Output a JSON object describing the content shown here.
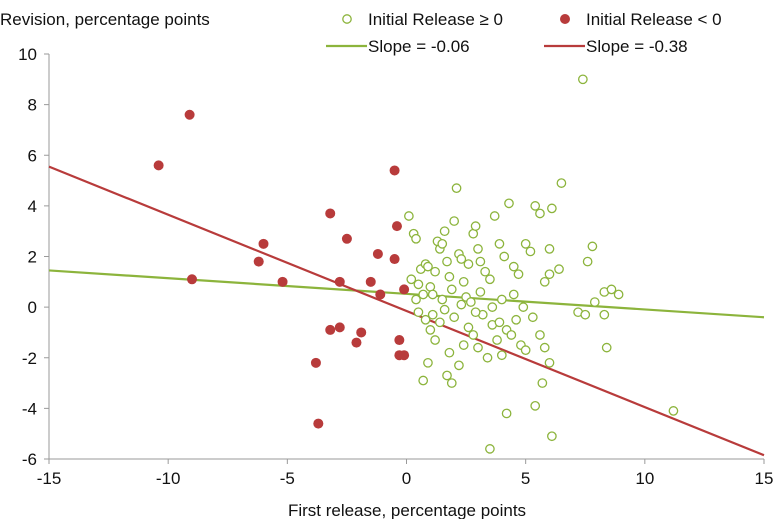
{
  "chart_data": {
    "type": "scatter",
    "title": "",
    "ylabel": "Revision, percentage points",
    "xlabel": "First release, percentage points",
    "xlim": [
      -15,
      15
    ],
    "ylim": [
      -6,
      10
    ],
    "x_ticks": [
      -15,
      -10,
      -5,
      0,
      5,
      10,
      15
    ],
    "y_ticks": [
      -6,
      -4,
      -2,
      0,
      2,
      4,
      6,
      8,
      10
    ],
    "x_tick_labels": [
      "-15",
      "-10",
      "-5",
      "0",
      "5",
      "10",
      "15"
    ],
    "y_tick_labels": [
      "-6",
      "-4",
      "-2",
      "0",
      "2",
      "4",
      "6",
      "8",
      "10"
    ],
    "grid": false,
    "legend_position": "top-right",
    "colors": {
      "positive": "#8cb43c",
      "negative": "#b83b3b"
    },
    "series": [
      {
        "name": "Initial Release ≥ 0",
        "marker": "hollow-circle",
        "color": "#8cb43c",
        "points": [
          [
            0.1,
            3.6
          ],
          [
            0.3,
            2.9
          ],
          [
            0.4,
            2.7
          ],
          [
            0.6,
            1.5
          ],
          [
            0.5,
            0.9
          ],
          [
            0.2,
            1.1
          ],
          [
            0.4,
            0.3
          ],
          [
            0.7,
            0.5
          ],
          [
            0.8,
            1.7
          ],
          [
            0.9,
            1.6
          ],
          [
            1.0,
            0.8
          ],
          [
            1.1,
            0.5
          ],
          [
            1.2,
            1.4
          ],
          [
            1.3,
            2.6
          ],
          [
            1.4,
            2.3
          ],
          [
            1.5,
            2.5
          ],
          [
            1.6,
            3.0
          ],
          [
            1.7,
            1.8
          ],
          [
            1.8,
            1.2
          ],
          [
            1.9,
            0.7
          ],
          [
            2.0,
            3.4
          ],
          [
            2.1,
            4.7
          ],
          [
            2.2,
            2.1
          ],
          [
            2.3,
            1.9
          ],
          [
            2.4,
            1.0
          ],
          [
            2.5,
            0.4
          ],
          [
            2.6,
            1.7
          ],
          [
            2.8,
            2.9
          ],
          [
            2.9,
            3.2
          ],
          [
            3.0,
            2.3
          ],
          [
            3.1,
            1.8
          ],
          [
            3.3,
            1.4
          ],
          [
            3.5,
            1.1
          ],
          [
            3.7,
            3.6
          ],
          [
            3.9,
            2.5
          ],
          [
            4.1,
            2.0
          ],
          [
            4.3,
            4.1
          ],
          [
            4.5,
            1.6
          ],
          [
            4.7,
            1.3
          ],
          [
            5.0,
            2.5
          ],
          [
            5.2,
            2.2
          ],
          [
            5.4,
            4.0
          ],
          [
            5.6,
            3.7
          ],
          [
            5.8,
            1.0
          ],
          [
            6.0,
            1.3
          ],
          [
            6.1,
            3.9
          ],
          [
            6.4,
            1.5
          ],
          [
            6.5,
            4.9
          ],
          [
            6.0,
            2.3
          ],
          [
            7.4,
            9.0
          ],
          [
            7.6,
            1.8
          ],
          [
            7.8,
            2.4
          ],
          [
            8.3,
            0.6
          ],
          [
            8.6,
            0.7
          ],
          [
            8.9,
            0.5
          ],
          [
            7.9,
            0.2
          ],
          [
            7.2,
            -0.2
          ],
          [
            7.5,
            -0.3
          ],
          [
            8.3,
            -0.3
          ],
          [
            8.4,
            -1.6
          ],
          [
            0.5,
            -0.2
          ],
          [
            0.8,
            -0.5
          ],
          [
            1.0,
            -0.9
          ],
          [
            1.2,
            -1.3
          ],
          [
            1.4,
            -0.6
          ],
          [
            1.6,
            -0.1
          ],
          [
            1.8,
            -1.8
          ],
          [
            2.0,
            -0.4
          ],
          [
            2.2,
            -2.3
          ],
          [
            2.4,
            -1.5
          ],
          [
            2.6,
            -0.8
          ],
          [
            2.8,
            -1.1
          ],
          [
            3.0,
            -1.6
          ],
          [
            3.2,
            -0.3
          ],
          [
            3.4,
            -2.0
          ],
          [
            3.6,
            -0.7
          ],
          [
            3.8,
            -1.3
          ],
          [
            4.0,
            -1.9
          ],
          [
            4.2,
            -0.9
          ],
          [
            4.4,
            -1.1
          ],
          [
            4.6,
            -0.5
          ],
          [
            4.8,
            -1.5
          ],
          [
            5.0,
            -1.7
          ],
          [
            5.3,
            -0.4
          ],
          [
            5.6,
            -1.1
          ],
          [
            5.8,
            -1.6
          ],
          [
            6.0,
            -2.2
          ],
          [
            5.7,
            -3.0
          ],
          [
            5.4,
            -3.9
          ],
          [
            4.2,
            -4.2
          ],
          [
            6.1,
            -5.1
          ],
          [
            3.5,
            -5.6
          ],
          [
            1.9,
            -3.0
          ],
          [
            1.7,
            -2.7
          ],
          [
            0.7,
            -2.9
          ],
          [
            0.9,
            -2.2
          ],
          [
            11.2,
            -4.1
          ],
          [
            2.3,
            0.1
          ],
          [
            2.7,
            0.2
          ],
          [
            3.1,
            0.6
          ],
          [
            3.6,
            0.0
          ],
          [
            4.0,
            0.3
          ],
          [
            4.5,
            0.5
          ],
          [
            1.5,
            0.3
          ],
          [
            1.1,
            -0.3
          ],
          [
            2.9,
            -0.2
          ],
          [
            3.9,
            -0.6
          ],
          [
            4.9,
            0.0
          ]
        ]
      },
      {
        "name": "Initial Release < 0",
        "marker": "filled-circle",
        "color": "#b83b3b",
        "points": [
          [
            -10.4,
            5.6
          ],
          [
            -9.1,
            7.6
          ],
          [
            -9.0,
            1.1
          ],
          [
            -6.0,
            2.5
          ],
          [
            -6.2,
            1.8
          ],
          [
            -5.2,
            1.0
          ],
          [
            -3.2,
            3.7
          ],
          [
            -2.5,
            2.7
          ],
          [
            -2.8,
            1.0
          ],
          [
            -1.5,
            1.0
          ],
          [
            -1.2,
            2.1
          ],
          [
            -1.1,
            0.5
          ],
          [
            -0.5,
            5.4
          ],
          [
            -0.4,
            3.2
          ],
          [
            -0.5,
            1.9
          ],
          [
            -0.1,
            0.7
          ],
          [
            -3.2,
            -0.9
          ],
          [
            -2.8,
            -0.8
          ],
          [
            -2.1,
            -1.4
          ],
          [
            -1.9,
            -1.0
          ],
          [
            -0.3,
            -1.3
          ],
          [
            -0.3,
            -1.9
          ],
          [
            -0.1,
            -1.9
          ],
          [
            -3.8,
            -2.2
          ],
          [
            -3.7,
            -4.6
          ]
        ]
      }
    ],
    "fit_lines": [
      {
        "name": "Slope = -0.06",
        "color": "#8cb43c",
        "x": [
          -15,
          15
        ],
        "y": [
          1.45,
          -0.4
        ]
      },
      {
        "name": "Slope = -0.38",
        "color": "#b83b3b",
        "x": [
          -15,
          15
        ],
        "y": [
          5.55,
          -5.85
        ]
      }
    ]
  }
}
